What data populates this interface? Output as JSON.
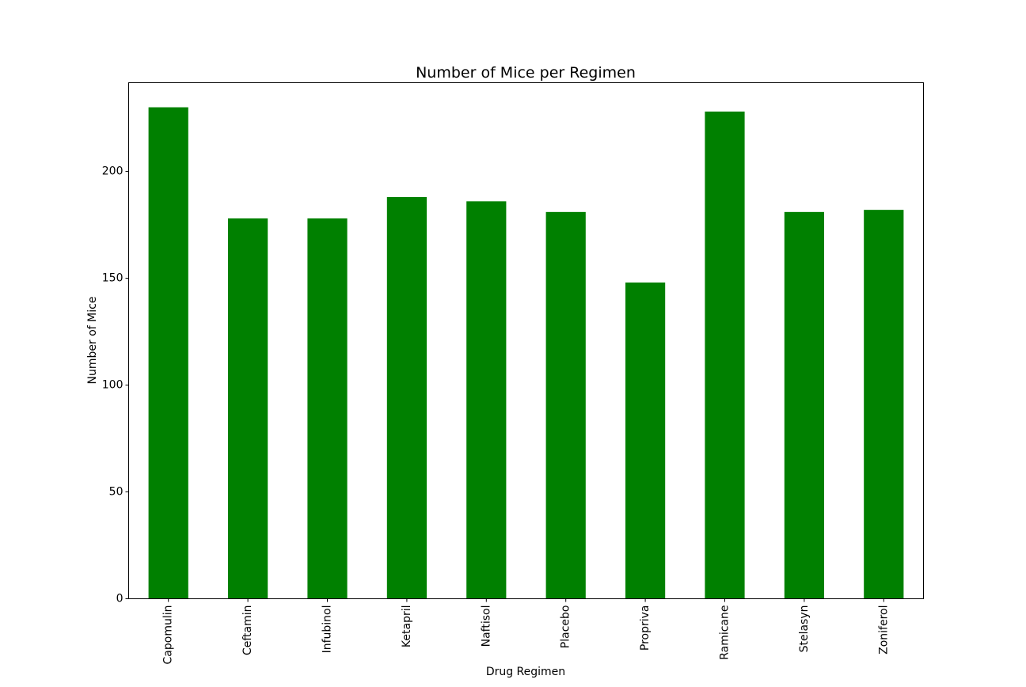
{
  "chart_data": {
    "type": "bar",
    "title": "Number of Mice per Regimen",
    "xlabel": "Drug Regimen",
    "ylabel": "Number of Mice",
    "categories": [
      "Capomulin",
      "Ceftamin",
      "Infubinol",
      "Ketapril",
      "Naftisol",
      "Placebo",
      "Propriva",
      "Ramicane",
      "Stelasyn",
      "Zoniferol"
    ],
    "values": [
      230,
      178,
      178,
      188,
      186,
      181,
      148,
      228,
      181,
      182
    ],
    "ylim": [
      0,
      241.5
    ],
    "yticks": [
      0,
      50,
      100,
      150,
      200
    ],
    "bar_color": "#008000",
    "grid": false,
    "legend": "none"
  }
}
